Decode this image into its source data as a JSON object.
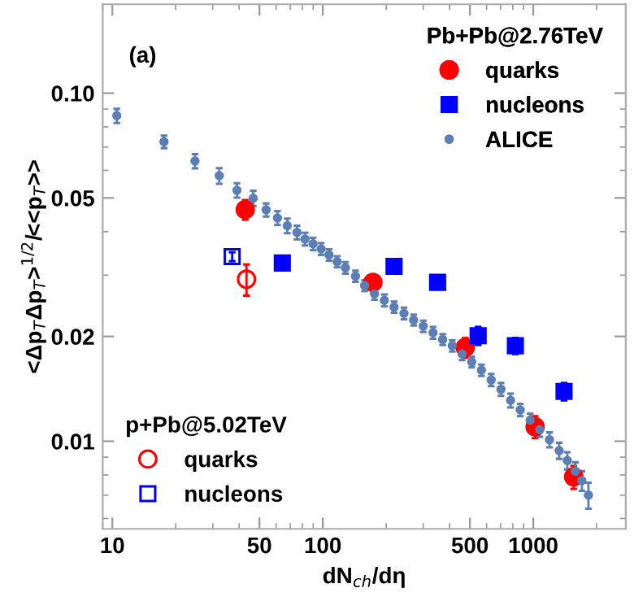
{
  "chart_data": {
    "type": "scatter",
    "xlabel": "dN$_{ch}$/dη",
    "ylabel": "<Δp$_{T}$Δp$_{T}$>$^{1/2}$/<<p$_{T}$>>",
    "log": "xy",
    "xlim": [
      9,
      2750
    ],
    "ylim": [
      0.0056,
      0.18
    ],
    "xticks": [
      10,
      50,
      100,
      500,
      1000
    ],
    "yticks": [
      0.01,
      0.02,
      0.05,
      {
        "value": 0.1,
        "label": "0.10"
      }
    ],
    "grid": false,
    "legend": [
      "bottom left",
      "top right"
    ],
    "legend_title": [
      "p+Pb@5.02TeV",
      "Pb+Pb@2.76TeV"
    ],
    "annotations": [
      "(a)"
    ],
    "series": [
      {
        "name": "quarks",
        "color": "#ff0000",
        "marker": "circle",
        "x": [
          43.4
        ],
        "values": [
          0.0292
        ],
        "errors": [
          0.003
        ]
      },
      {
        "name": "nucleons",
        "color": "#0000ff",
        "marker": "square",
        "x": [
          37.1
        ],
        "values": [
          0.0339
        ],
        "errors": [
          0.001
        ]
      },
      {
        "name": "quarks",
        "color": "#ff0000",
        "marker": "circle",
        "x": [
          42.8,
          173,
          475,
          1020,
          1556
        ],
        "values": [
          0.0463,
          0.0286,
          0.0186,
          0.011,
          0.0079
        ],
        "errors": [
          0.003,
          0.0015,
          0.0012,
          0.0008,
          0.0006
        ]
      },
      {
        "name": "nucleons",
        "color": "#0000ff",
        "marker": "square",
        "x": [
          64.2,
          218,
          351,
          547,
          822,
          1400
        ],
        "values": [
          0.0325,
          0.0318,
          0.0286,
          0.0201,
          0.0188,
          0.0139
        ],
        "errors": [
          0.0015,
          0.0012,
          0.0012,
          0.0012,
          0.001,
          0.0008
        ]
      },
      {
        "name": "ALICE",
        "color": "#5b7fb5",
        "marker": "dot",
        "x": [
          10.5,
          17.6,
          24.7,
          32.2,
          39.1,
          46.7,
          53.8,
          60.9,
          67.8,
          75.4,
          82.3,
          89.9,
          98.2,
          107,
          117,
          128,
          143,
          158,
          176,
          196,
          218,
          243,
          270,
          300,
          334,
          371,
          412,
          459,
          510,
          567,
          631,
          702,
          780,
          867,
          966,
          1074,
          1194,
          1327,
          1451,
          1585,
          1702,
          1828
        ],
        "values": [
          0.0861,
          0.0725,
          0.0638,
          0.0579,
          0.0526,
          0.0499,
          0.0462,
          0.0438,
          0.0416,
          0.0398,
          0.0381,
          0.0369,
          0.0357,
          0.0343,
          0.0328,
          0.0315,
          0.0298,
          0.028,
          0.0265,
          0.0254,
          0.0243,
          0.0233,
          0.0223,
          0.0214,
          0.0205,
          0.0196,
          0.0188,
          0.0178,
          0.0169,
          0.016,
          0.015,
          0.0141,
          0.0131,
          0.0123,
          0.0115,
          0.0108,
          0.0101,
          0.0094,
          0.0088,
          0.0082,
          0.0077,
          0.007
        ],
        "errors": [
          0.004,
          0.003,
          0.003,
          0.003,
          0.0025,
          0.0025,
          0.002,
          0.002,
          0.002,
          0.0018,
          0.0016,
          0.0015,
          0.0014,
          0.0013,
          0.0012,
          0.0012,
          0.0011,
          0.001,
          0.001,
          0.001,
          0.0009,
          0.0009,
          0.0008,
          0.0008,
          0.0008,
          0.0007,
          0.0007,
          0.0007,
          0.0006,
          0.0006,
          0.0006,
          0.0006,
          0.0006,
          0.0005,
          0.0005,
          0.0005,
          0.0005,
          0.0005,
          0.0005,
          0.0005,
          0.0005,
          0.0006
        ]
      }
    ]
  }
}
